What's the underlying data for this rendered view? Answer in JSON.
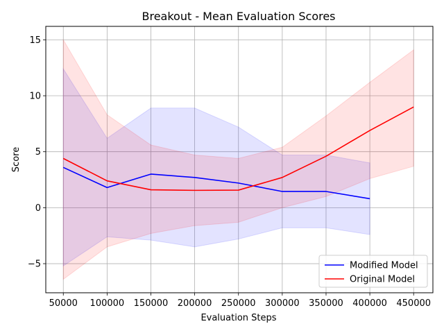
{
  "chart_data": {
    "type": "line",
    "title": "Breakout - Mean Evaluation Scores",
    "xlabel": "Evaluation Steps",
    "ylabel": "Score",
    "xlim": [
      30000,
      472000
    ],
    "ylim": [
      -7.6,
      16.2
    ],
    "x_ticks": [
      50000,
      100000,
      150000,
      200000,
      250000,
      300000,
      350000,
      400000,
      450000
    ],
    "x_tick_labels": [
      "50000",
      "100000",
      "150000",
      "200000",
      "250000",
      "300000",
      "350000",
      "400000",
      "450000"
    ],
    "y_ticks": [
      -5,
      0,
      5,
      10,
      15
    ],
    "y_tick_labels": [
      "−5",
      "0",
      "5",
      "10",
      "15"
    ],
    "grid": true,
    "legend_placement": "lower-right",
    "series": [
      {
        "name": "Modified Model",
        "color": "#0000ff",
        "x": [
          50000,
          100000,
          150000,
          200000,
          250000,
          300000,
          350000,
          400000
        ],
        "values": [
          3.6,
          1.8,
          3.0,
          2.7,
          2.2,
          1.45,
          1.45,
          0.8
        ],
        "upper": [
          12.4,
          6.2,
          8.9,
          8.9,
          7.2,
          4.7,
          4.7,
          4.0
        ],
        "lower": [
          -5.2,
          -2.6,
          -2.9,
          -3.5,
          -2.8,
          -1.8,
          -1.8,
          -2.4
        ]
      },
      {
        "name": "Original Model",
        "color": "#ff0000",
        "x": [
          50000,
          100000,
          150000,
          200000,
          250000,
          300000,
          350000,
          400000,
          450000
        ],
        "values": [
          4.4,
          2.4,
          1.6,
          1.55,
          1.57,
          2.7,
          4.6,
          6.9,
          9.0
        ],
        "upper": [
          15.0,
          8.3,
          5.6,
          4.7,
          4.4,
          5.4,
          8.2,
          11.2,
          14.1
        ],
        "lower": [
          -6.4,
          -3.5,
          -2.3,
          -1.6,
          -1.3,
          0.0,
          1.0,
          2.6,
          3.7
        ]
      }
    ]
  }
}
